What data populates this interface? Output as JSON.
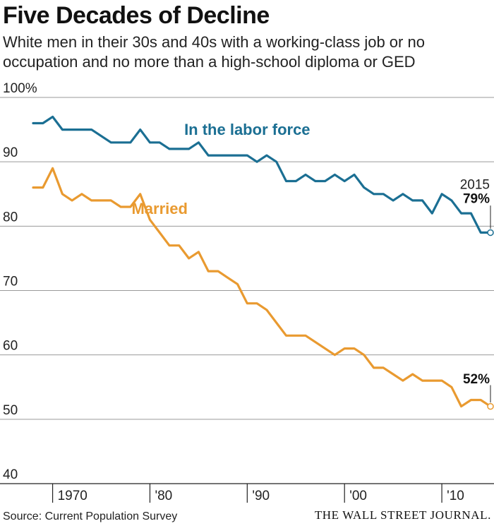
{
  "title": "Five Decades of Decline",
  "subtitle": "White men in their 30s and 40s with a working-class job or no occupation and no more than a high-school diploma or GED",
  "source": "Source: Current Population Survey",
  "brand": "THE WALL STREET JOURNAL.",
  "chart_data": {
    "type": "line",
    "title": "Five Decades of Decline",
    "subtitle": "White men in their 30s and 40s with a working-class job or no occupation and no more than a high-school diploma or GED",
    "xlim": [
      1968,
      2015
    ],
    "ylim": [
      40,
      100
    ],
    "x_ticks": [
      1970,
      1980,
      1990,
      2000,
      2010
    ],
    "x_tick_labels": [
      "1970",
      "'80",
      "'90",
      "'00",
      "'10"
    ],
    "y_ticks": [
      40,
      50,
      60,
      70,
      80,
      90,
      100
    ],
    "y_tick_labels": [
      "40",
      "50",
      "60",
      "70",
      "80",
      "90",
      "100%"
    ],
    "grid": "horizontal",
    "x": [
      1968,
      1969,
      1970,
      1971,
      1972,
      1973,
      1974,
      1975,
      1976,
      1977,
      1978,
      1979,
      1980,
      1981,
      1982,
      1983,
      1984,
      1985,
      1986,
      1987,
      1988,
      1989,
      1990,
      1991,
      1992,
      1993,
      1994,
      1995,
      1996,
      1997,
      1998,
      1999,
      2000,
      2001,
      2002,
      2003,
      2004,
      2005,
      2006,
      2007,
      2008,
      2009,
      2010,
      2011,
      2012,
      2013,
      2014,
      2015
    ],
    "series": [
      {
        "name": "In the labor force",
        "color": "#1b6f93",
        "values": [
          96,
          96,
          97,
          95,
          95,
          95,
          95,
          94,
          93,
          93,
          93,
          95,
          93,
          93,
          92,
          92,
          92,
          93,
          91,
          91,
          91,
          91,
          91,
          90,
          91,
          90,
          87,
          87,
          88,
          87,
          87,
          88,
          87,
          88,
          86,
          85,
          85,
          84,
          85,
          84,
          84,
          82,
          85,
          84,
          82,
          82,
          79,
          79
        ]
      },
      {
        "name": "Married",
        "color": "#e99a30",
        "values": [
          86,
          86,
          89,
          85,
          84,
          85,
          84,
          84,
          84,
          83,
          83,
          85,
          81,
          79,
          77,
          77,
          75,
          76,
          73,
          73,
          72,
          71,
          68,
          68,
          67,
          65,
          63,
          63,
          63,
          62,
          61,
          60,
          61,
          61,
          60,
          58,
          58,
          57,
          56,
          57,
          56,
          56,
          56,
          55,
          52,
          53,
          53,
          52
        ]
      }
    ],
    "annotations": [
      {
        "text": "2015",
        "x": 2015
      },
      {
        "text": "79%",
        "x": 2015,
        "y": 79
      },
      {
        "text": "52%",
        "x": 2015,
        "y": 52
      }
    ]
  }
}
